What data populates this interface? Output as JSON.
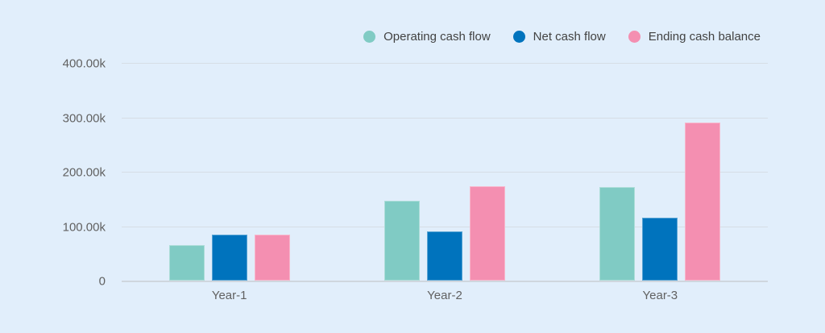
{
  "chart_data": {
    "type": "bar",
    "title": "",
    "xlabel": "",
    "ylabel": "",
    "categories": [
      "Year-1",
      "Year-2",
      "Year-3"
    ],
    "series": [
      {
        "name": "Operating cash flow",
        "color": "#80cbc4",
        "values": [
          65000,
          146000,
          172000
        ]
      },
      {
        "name": "Net cash flow",
        "color": "#0073bd",
        "values": [
          84500,
          90000,
          116000
        ]
      },
      {
        "name": "Ending cash balance",
        "color": "#f48fb1",
        "values": [
          84500,
          173000,
          290000
        ]
      }
    ],
    "ylim": [
      0,
      400000
    ],
    "yticks": [
      {
        "value": 0,
        "label": "0"
      },
      {
        "value": 100000,
        "label": "100.00k"
      },
      {
        "value": 200000,
        "label": "200.00k"
      },
      {
        "value": 300000,
        "label": "300.00k"
      },
      {
        "value": 400000,
        "label": "400.00k"
      }
    ],
    "grid": true,
    "legend_position": "top-right"
  },
  "colors": {
    "background": "#e1eefb",
    "gridline": "#d6dde5",
    "axis_text": "#616161",
    "legend_text": "#424242"
  }
}
